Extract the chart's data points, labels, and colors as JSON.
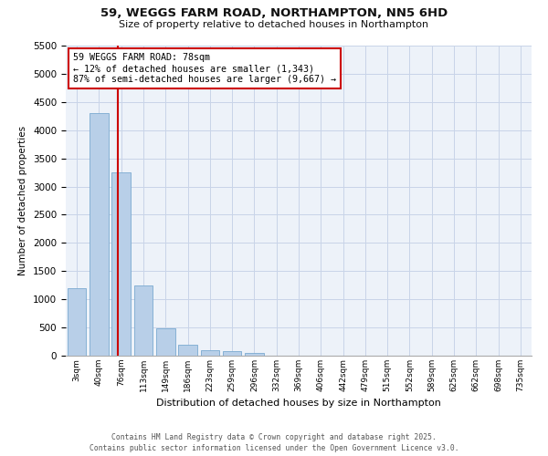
{
  "title": "59, WEGGS FARM ROAD, NORTHAMPTON, NN5 6HD",
  "subtitle": "Size of property relative to detached houses in Northampton",
  "xlabel": "Distribution of detached houses by size in Northampton",
  "ylabel": "Number of detached properties",
  "bar_color": "#b8cfe8",
  "bar_edge_color": "#7aaad0",
  "vline_color": "#cc0000",
  "vline_x_category": 1,
  "categories": [
    "3sqm",
    "40sqm",
    "76sqm",
    "113sqm",
    "149sqm",
    "186sqm",
    "223sqm",
    "259sqm",
    "296sqm",
    "332sqm",
    "369sqm",
    "406sqm",
    "442sqm",
    "479sqm",
    "515sqm",
    "552sqm",
    "589sqm",
    "625sqm",
    "662sqm",
    "698sqm",
    "735sqm"
  ],
  "values": [
    1200,
    4300,
    3250,
    1250,
    490,
    200,
    100,
    75,
    45,
    0,
    0,
    0,
    0,
    0,
    0,
    0,
    0,
    0,
    0,
    0,
    0
  ],
  "annotation_text": "59 WEGGS FARM ROAD: 78sqm\n← 12% of detached houses are smaller (1,343)\n87% of semi-detached houses are larger (9,667) →",
  "annotation_box_color": "#ffffff",
  "annotation_box_edge": "#cc0000",
  "footer1": "Contains HM Land Registry data © Crown copyright and database right 2025.",
  "footer2": "Contains public sector information licensed under the Open Government Licence v3.0.",
  "ylim": [
    0,
    5500
  ],
  "yticks": [
    0,
    500,
    1000,
    1500,
    2000,
    2500,
    3000,
    3500,
    4000,
    4500,
    5000,
    5500
  ],
  "background_color": "#edf2f9",
  "grid_color": "#c8d4e8",
  "figsize": [
    6.0,
    5.0
  ],
  "dpi": 100
}
